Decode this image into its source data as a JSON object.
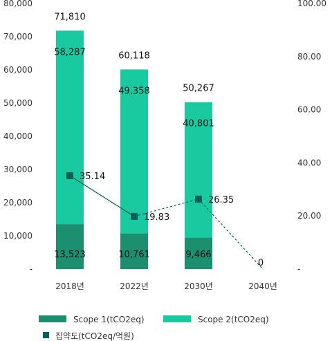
{
  "chart_data": {
    "type": "bar",
    "categories": [
      "2018년",
      "2022년",
      "2030년",
      "2040년"
    ],
    "left_axis": {
      "range": [
        0,
        80000
      ],
      "ticks": [
        "-",
        "10,000",
        "20,000",
        "30,000",
        "40,000",
        "50,000",
        "60,000",
        "70,000",
        "80,000"
      ]
    },
    "right_axis": {
      "range": [
        0,
        100
      ],
      "ticks": [
        "-",
        "20.00",
        "40.00",
        "60.00",
        "80.00",
        "100.00"
      ]
    },
    "series": [
      {
        "name": "Scope 1(tCO2eq)",
        "kind": "stacked-bar",
        "color": "#1b8f6f",
        "values": [
          13523,
          10761,
          9466,
          null
        ],
        "labels": [
          "13,523",
          "10,761",
          "9,466",
          ""
        ]
      },
      {
        "name": "Scope 2(tCO2eq)",
        "kind": "stacked-bar",
        "color": "#19c9a0",
        "values": [
          58287,
          49358,
          40801,
          null
        ],
        "labels": [
          "58,287",
          "49,358",
          "40,801",
          ""
        ]
      },
      {
        "name": "집약도(tCO2eq/억원)",
        "kind": "line",
        "axis": "right",
        "color": "#0e5e58",
        "values": [
          35.14,
          19.83,
          26.35,
          0
        ],
        "labels": [
          "35.14",
          "19.83",
          "26.35",
          "0"
        ],
        "dashed_from_index": 1
      }
    ],
    "totals": [
      71810,
      60118,
      50267,
      null
    ],
    "total_labels": [
      "71,810",
      "60,118",
      "50,267",
      ""
    ],
    "grid": false,
    "legend_position": "bottom"
  }
}
